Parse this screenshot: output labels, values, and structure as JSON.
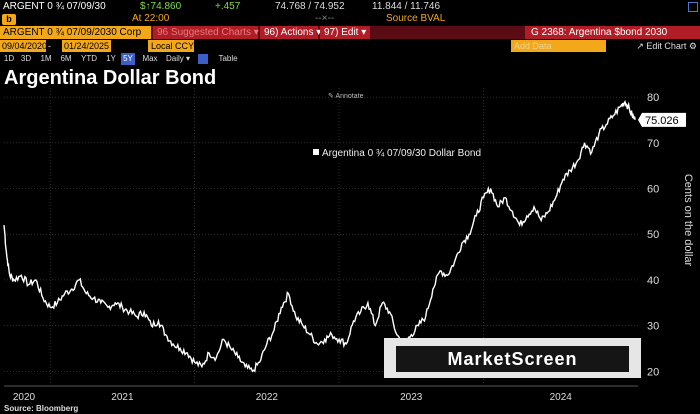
{
  "header": {
    "ticker": "ARGENT 0 ¾ 07/09/30",
    "last_price": "$↑74.860",
    "change": "+.457",
    "bid_ask": "74.768 / 74.952",
    "size": "11.844 / 11.746",
    "time": "At 22:00",
    "dashes": "--×--",
    "source": "Source BVAL"
  },
  "toolbar": {
    "security": "ARGENT 0 ¾ 07/09/2030 Corp",
    "suggested": "96 Suggested Charts ▾",
    "actions": "96) Actions ▾",
    "edit": "97) Edit ▾",
    "graph_title": "G 2368: Argentina $bond 2030"
  },
  "controls": {
    "start_date": "09/04/2020",
    "end_date": "01/24/2025",
    "currency": "Local CCY",
    "add_data": "Add Data",
    "edit_chart": "↗ Edit Chart ⚙"
  },
  "periods": [
    "1D",
    "3D",
    "1M",
    "6M",
    "YTD",
    "1Y",
    "5Y",
    "Max",
    "Daily ▾"
  ],
  "selected_period": "5Y",
  "table_label": "Table",
  "annotate_label": "Annotate",
  "colors": {
    "orange": "#f3a81a",
    "red": "#b01d26",
    "line": "#ffffff",
    "select": "#3b5fc6"
  },
  "watermark": "MarketScreen",
  "footer": {
    "source": "Source: Bloomberg"
  },
  "chart_data": {
    "type": "line",
    "title": "Argentina Dollar Bond",
    "ylabel": "Cents on the dollar",
    "ylim": [
      17,
      82
    ],
    "yticks": [
      20,
      30,
      40,
      50,
      60,
      70,
      80
    ],
    "xlim": [
      2020.68,
      2025.07
    ],
    "xticks": [
      {
        "label": "2020",
        "x": 2020.68
      },
      {
        "label": "2021",
        "x": 2021
      },
      {
        "label": "2022",
        "x": 2022
      },
      {
        "label": "2023",
        "x": 2023
      },
      {
        "label": "2024",
        "x": 2024
      }
    ],
    "grid": true,
    "legend": "top-center",
    "last_value_label": "75.026",
    "series": [
      {
        "name": "Argentina 0 ¾ 07/09/30 Dollar Bond",
        "x": [
          2020.68,
          2020.7,
          2020.72,
          2020.75,
          2020.8,
          2020.85,
          2020.9,
          2020.95,
          2021.0,
          2021.05,
          2021.1,
          2021.15,
          2021.2,
          2021.25,
          2021.3,
          2021.35,
          2021.4,
          2021.45,
          2021.5,
          2021.55,
          2021.6,
          2021.65,
          2021.7,
          2021.75,
          2021.8,
          2021.85,
          2021.9,
          2021.95,
          2022.0,
          2022.05,
          2022.1,
          2022.15,
          2022.2,
          2022.25,
          2022.3,
          2022.35,
          2022.4,
          2022.45,
          2022.5,
          2022.55,
          2022.6,
          2022.65,
          2022.7,
          2022.75,
          2022.8,
          2022.85,
          2022.9,
          2022.95,
          2023.0,
          2023.05,
          2023.1,
          2023.15,
          2023.2,
          2023.25,
          2023.3,
          2023.35,
          2023.4,
          2023.45,
          2023.5,
          2023.55,
          2023.6,
          2023.65,
          2023.7,
          2023.75,
          2023.8,
          2023.85,
          2023.9,
          2023.95,
          2024.0,
          2024.05,
          2024.1,
          2024.15,
          2024.2,
          2024.25,
          2024.3,
          2024.35,
          2024.4,
          2024.45,
          2024.5,
          2024.55,
          2024.6,
          2024.65,
          2024.7,
          2024.75,
          2024.8,
          2024.85,
          2024.9,
          2024.95,
          2024.98,
          2025.0,
          2025.03,
          2025.05
        ],
        "values": [
          52,
          45,
          41,
          40,
          41,
          39,
          40,
          36,
          34,
          35,
          37,
          38,
          40,
          37,
          36,
          35,
          34,
          35,
          34,
          33,
          32,
          33,
          30,
          31,
          28,
          26,
          25,
          24,
          22,
          21,
          24,
          23,
          27,
          25,
          23,
          21,
          20,
          22,
          26,
          29,
          34,
          37,
          32,
          30,
          28,
          26,
          27,
          28,
          27,
          26,
          31,
          33,
          35,
          30,
          35,
          33,
          28,
          26,
          28,
          30,
          32,
          38,
          42,
          41,
          44,
          48,
          50,
          54,
          58,
          60,
          56,
          58,
          55,
          52,
          54,
          56,
          53,
          55,
          58,
          62,
          64,
          66,
          70,
          68,
          72,
          74,
          76,
          78,
          79,
          78,
          76,
          75.026
        ]
      }
    ]
  }
}
